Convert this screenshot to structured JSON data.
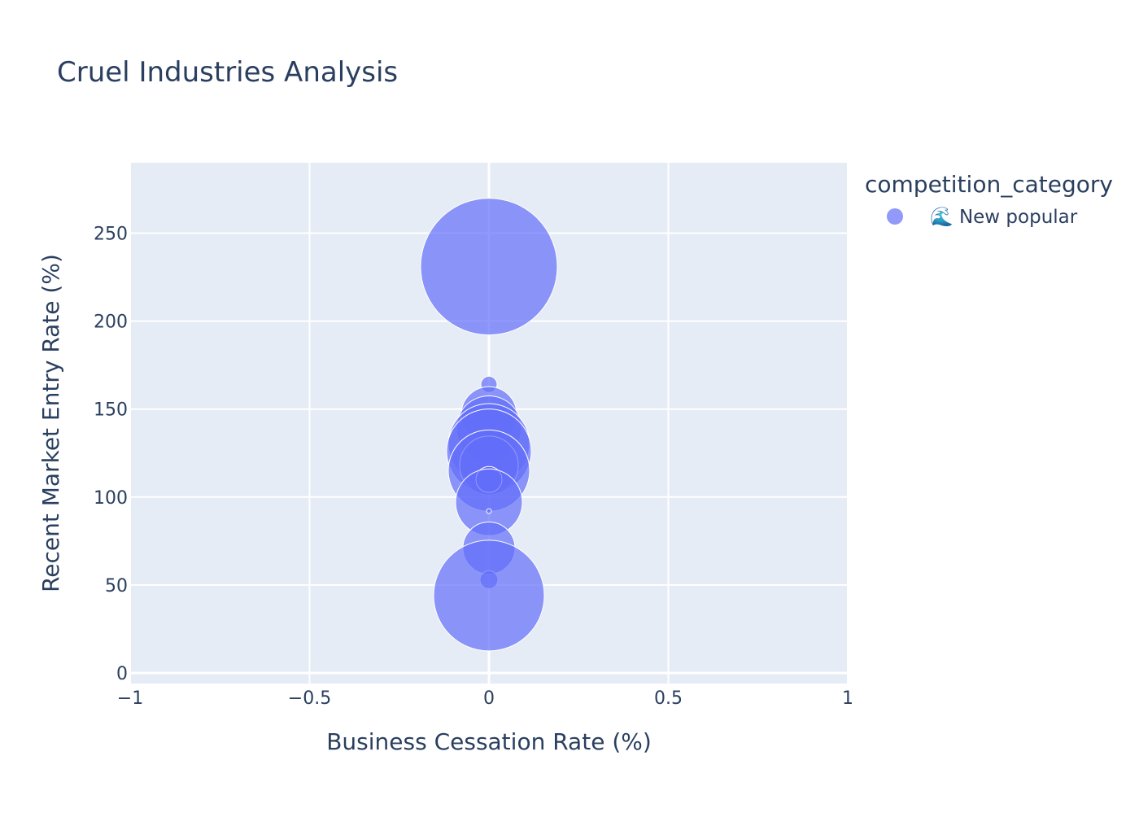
{
  "chart_data": {
    "type": "scatter",
    "title": "Cruel Industries Analysis",
    "xlabel": "Business Cessation Rate (%)",
    "ylabel": "Recent Market Entry Rate (%)",
    "xlim": [
      -1,
      1
    ],
    "ylim": [
      -6,
      290
    ],
    "x_ticks": [
      {
        "value": -1,
        "label": "−1"
      },
      {
        "value": -0.5,
        "label": "−0.5"
      },
      {
        "value": 0,
        "label": "0"
      },
      {
        "value": 0.5,
        "label": "0.5"
      },
      {
        "value": 1,
        "label": "1"
      }
    ],
    "y_ticks": [
      {
        "value": 0,
        "label": "0"
      },
      {
        "value": 50,
        "label": "50"
      },
      {
        "value": 100,
        "label": "100"
      },
      {
        "value": 150,
        "label": "150"
      },
      {
        "value": 200,
        "label": "200"
      },
      {
        "value": 250,
        "label": "250"
      }
    ],
    "grid": true,
    "legend": {
      "title": "competition_category",
      "position": "top-right"
    },
    "series": [
      {
        "name": "🌊 New popular",
        "color": "#636efa",
        "points": [
          {
            "x": 0,
            "y": 231,
            "size": 84
          },
          {
            "x": 0,
            "y": 164,
            "size": 10
          },
          {
            "x": 0,
            "y": 147,
            "size": 34
          },
          {
            "x": 0,
            "y": 139,
            "size": 40
          },
          {
            "x": 0,
            "y": 130,
            "size": 50
          },
          {
            "x": 0,
            "y": 126,
            "size": 52
          },
          {
            "x": 0,
            "y": 118,
            "size": 36
          },
          {
            "x": 0,
            "y": 115,
            "size": 50
          },
          {
            "x": 0,
            "y": 110,
            "size": 16
          },
          {
            "x": 0,
            "y": 97,
            "size": 41
          },
          {
            "x": 0,
            "y": 92,
            "size": 3
          },
          {
            "x": 0,
            "y": 71,
            "size": 32
          },
          {
            "x": 0,
            "y": 53,
            "size": 11
          },
          {
            "x": 0,
            "y": 44,
            "size": 68
          }
        ]
      }
    ]
  }
}
